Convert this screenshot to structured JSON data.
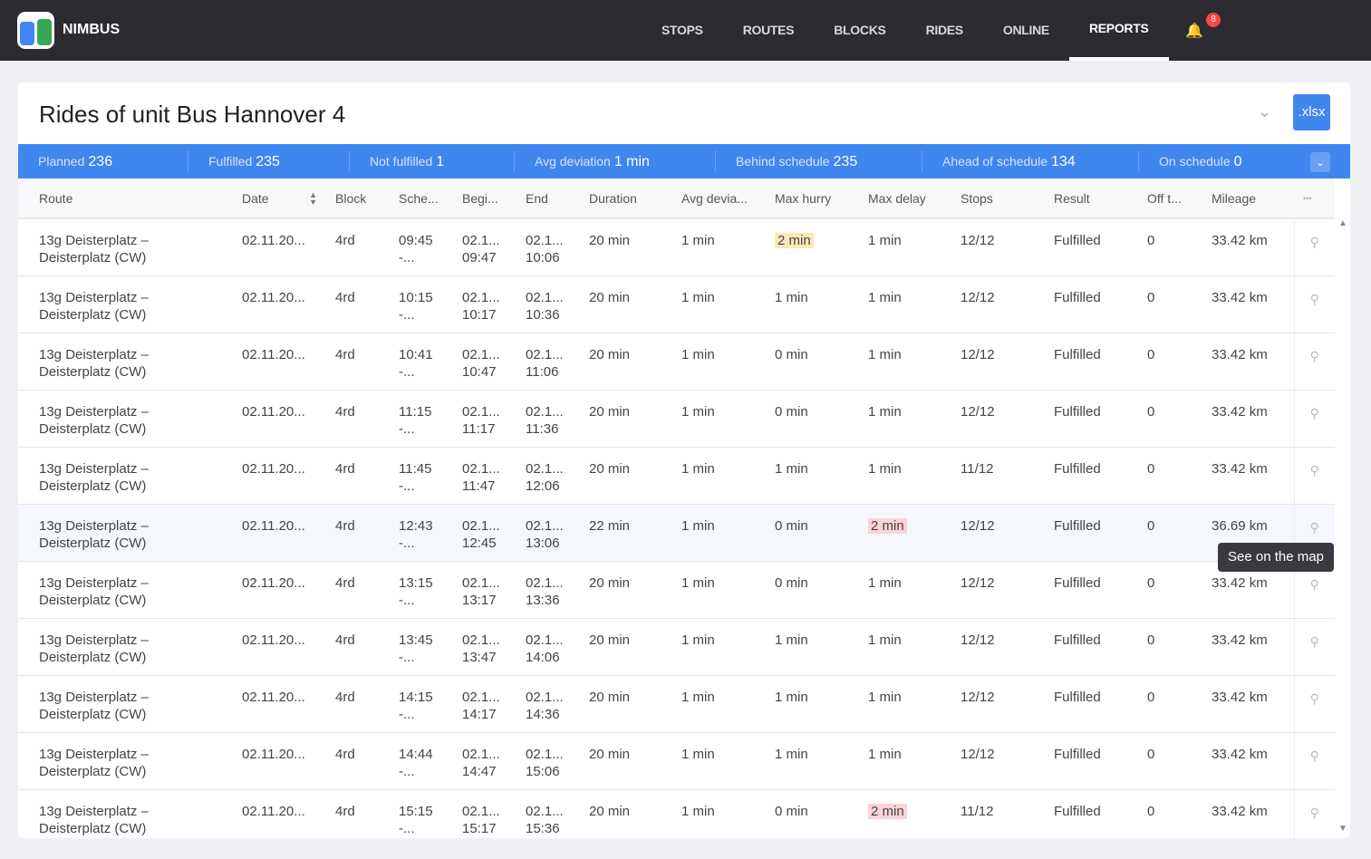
{
  "app": {
    "brand": "NIMBUS",
    "nav": [
      "STOPS",
      "ROUTES",
      "BLOCKS",
      "RIDES",
      "ONLINE",
      "REPORTS"
    ],
    "active": "REPORTS",
    "notifications": "8"
  },
  "page": {
    "title": "Rides of unit Bus Hannover 4",
    "export": ".xlsx"
  },
  "summary": [
    {
      "label": "Planned",
      "value": "236"
    },
    {
      "label": "Fulfilled",
      "value": "235"
    },
    {
      "label": "Not fulfilled",
      "value": "1"
    },
    {
      "label": "Avg deviation",
      "value": "1 min"
    },
    {
      "label": "Behind schedule",
      "value": "235"
    },
    {
      "label": "Ahead of schedule",
      "value": "134"
    },
    {
      "label": "On schedule",
      "value": "0"
    }
  ],
  "columns": [
    "Route",
    "Date",
    "Block",
    "Sche...",
    "Begi...",
    "End",
    "Duration",
    "Avg devia...",
    "Max hurry",
    "Max delay",
    "Stops",
    "Result",
    "Off t...",
    "Mileage"
  ],
  "rows": [
    {
      "r1": "13g Deisterplatz –",
      "r2": "Deisterplatz (CW)",
      "date": "02.11.20...",
      "block": "4rd",
      "s1": "09:45",
      "s2": "-...",
      "b1": "02.1...",
      "b2": "09:47",
      "e1": "02.1...",
      "e2": "10:06",
      "dur": "20 min",
      "avg": "1 min",
      "hurry": "2 min",
      "delay": "1 min",
      "stops": "12/12",
      "result": "Fulfilled",
      "off": "0",
      "mil": "33.42 km",
      "hh": true
    },
    {
      "r1": "13g Deisterplatz –",
      "r2": "Deisterplatz (CW)",
      "date": "02.11.20...",
      "block": "4rd",
      "s1": "10:15",
      "s2": "-...",
      "b1": "02.1...",
      "b2": "10:17",
      "e1": "02.1...",
      "e2": "10:36",
      "dur": "20 min",
      "avg": "1 min",
      "hurry": "1 min",
      "delay": "1 min",
      "stops": "12/12",
      "result": "Fulfilled",
      "off": "0",
      "mil": "33.42 km"
    },
    {
      "r1": "13g Deisterplatz –",
      "r2": "Deisterplatz (CW)",
      "date": "02.11.20...",
      "block": "4rd",
      "s1": "10:41",
      "s2": "-...",
      "b1": "02.1...",
      "b2": "10:47",
      "e1": "02.1...",
      "e2": "11:06",
      "dur": "20 min",
      "avg": "1 min",
      "hurry": "0 min",
      "delay": "1 min",
      "stops": "12/12",
      "result": "Fulfilled",
      "off": "0",
      "mil": "33.42 km"
    },
    {
      "r1": "13g Deisterplatz –",
      "r2": "Deisterplatz (CW)",
      "date": "02.11.20...",
      "block": "4rd",
      "s1": "11:15",
      "s2": "-...",
      "b1": "02.1...",
      "b2": "11:17",
      "e1": "02.1...",
      "e2": "11:36",
      "dur": "20 min",
      "avg": "1 min",
      "hurry": "0 min",
      "delay": "1 min",
      "stops": "12/12",
      "result": "Fulfilled",
      "off": "0",
      "mil": "33.42 km"
    },
    {
      "r1": "13g Deisterplatz –",
      "r2": "Deisterplatz (CW)",
      "date": "02.11.20...",
      "block": "4rd",
      "s1": "11:45",
      "s2": "-...",
      "b1": "02.1...",
      "b2": "11:47",
      "e1": "02.1...",
      "e2": "12:06",
      "dur": "20 min",
      "avg": "1 min",
      "hurry": "1 min",
      "delay": "1 min",
      "stops": "11/12",
      "result": "Fulfilled",
      "off": "0",
      "mil": "33.42 km"
    },
    {
      "r1": "13g Deisterplatz –",
      "r2": "Deisterplatz (CW)",
      "date": "02.11.20...",
      "block": "4rd",
      "s1": "12:43",
      "s2": "-...",
      "b1": "02.1...",
      "b2": "12:45",
      "e1": "02.1...",
      "e2": "13:06",
      "dur": "22 min",
      "avg": "1 min",
      "hurry": "0 min",
      "delay": "2 min",
      "stops": "12/12",
      "result": "Fulfilled",
      "off": "0",
      "mil": "36.69 km",
      "dh": true,
      "hover": true
    },
    {
      "r1": "13g Deisterplatz –",
      "r2": "Deisterplatz (CW)",
      "date": "02.11.20...",
      "block": "4rd",
      "s1": "13:15",
      "s2": "-...",
      "b1": "02.1...",
      "b2": "13:17",
      "e1": "02.1...",
      "e2": "13:36",
      "dur": "20 min",
      "avg": "1 min",
      "hurry": "0 min",
      "delay": "1 min",
      "stops": "12/12",
      "result": "Fulfilled",
      "off": "0",
      "mil": "33.42 km"
    },
    {
      "r1": "13g Deisterplatz –",
      "r2": "Deisterplatz (CW)",
      "date": "02.11.20...",
      "block": "4rd",
      "s1": "13:45",
      "s2": "-...",
      "b1": "02.1...",
      "b2": "13:47",
      "e1": "02.1...",
      "e2": "14:06",
      "dur": "20 min",
      "avg": "1 min",
      "hurry": "1 min",
      "delay": "1 min",
      "stops": "12/12",
      "result": "Fulfilled",
      "off": "0",
      "mil": "33.42 km"
    },
    {
      "r1": "13g Deisterplatz –",
      "r2": "Deisterplatz (CW)",
      "date": "02.11.20...",
      "block": "4rd",
      "s1": "14:15",
      "s2": "-...",
      "b1": "02.1...",
      "b2": "14:17",
      "e1": "02.1...",
      "e2": "14:36",
      "dur": "20 min",
      "avg": "1 min",
      "hurry": "1 min",
      "delay": "1 min",
      "stops": "12/12",
      "result": "Fulfilled",
      "off": "0",
      "mil": "33.42 km"
    },
    {
      "r1": "13g Deisterplatz –",
      "r2": "Deisterplatz (CW)",
      "date": "02.11.20...",
      "block": "4rd",
      "s1": "14:44",
      "s2": "-...",
      "b1": "02.1...",
      "b2": "14:47",
      "e1": "02.1...",
      "e2": "15:06",
      "dur": "20 min",
      "avg": "1 min",
      "hurry": "1 min",
      "delay": "1 min",
      "stops": "12/12",
      "result": "Fulfilled",
      "off": "0",
      "mil": "33.42 km"
    },
    {
      "r1": "13g Deisterplatz –",
      "r2": "Deisterplatz (CW)",
      "date": "02.11.20...",
      "block": "4rd",
      "s1": "15:15",
      "s2": "-...",
      "b1": "02.1...",
      "b2": "15:17",
      "e1": "02.1...",
      "e2": "15:36",
      "dur": "20 min",
      "avg": "1 min",
      "hurry": "0 min",
      "delay": "2 min",
      "stops": "11/12",
      "result": "Fulfilled",
      "off": "0",
      "mil": "33.42 km",
      "dh": true
    }
  ],
  "tooltip": "See on the map"
}
